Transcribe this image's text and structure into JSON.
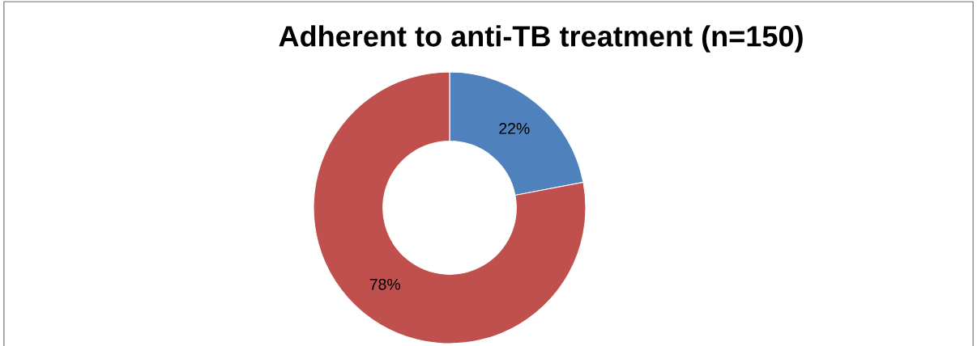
{
  "chart_data": {
    "type": "donut",
    "title": "Adherent to anti-TB treatment (n=150)",
    "categories": [
      null,
      null
    ],
    "values": [
      22,
      78
    ],
    "colors": [
      "#4f81bd",
      "#c0504d"
    ],
    "value_labels": [
      "22%",
      "78%"
    ],
    "legend": false
  }
}
